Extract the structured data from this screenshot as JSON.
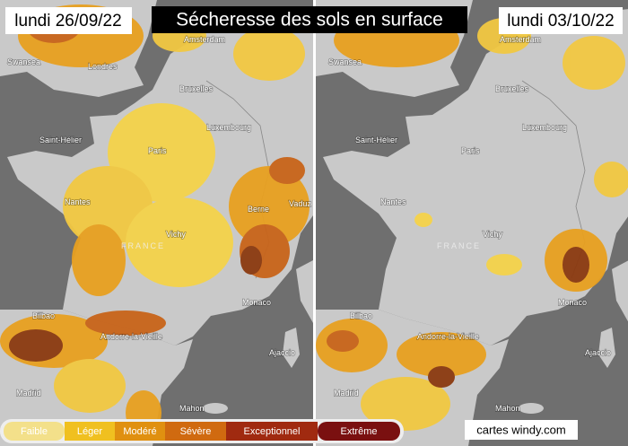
{
  "title": "Sécheresse des sols en surface",
  "panels": [
    {
      "date": "lundi 26/09/22",
      "cities": [
        "Swansea",
        "Londres",
        "Amsterdam",
        "Bruxelles",
        "Luxembourg",
        "Saint-Hélier",
        "Paris",
        "Nantes",
        "Vichy",
        "Berne",
        "Vaduz",
        "FRANCE",
        "Monaco",
        "Bilbao",
        "Andorre-la-Vieille",
        "Ajaccio",
        "Madrid",
        "Mahon"
      ]
    },
    {
      "date": "lundi 03/10/22",
      "cities": [
        "Swansea",
        "Amsterdam",
        "Bruxelles",
        "Luxembourg",
        "Saint-Hélier",
        "Paris",
        "Nantes",
        "Vichy",
        "FRANCE",
        "Monaco",
        "Bilbao",
        "Andorre-la-Vieille",
        "Ajaccio",
        "Madrid",
        "Mahon"
      ]
    }
  ],
  "legend": [
    "Faible",
    "Léger",
    "Modéré",
    "Sévère",
    "Exceptionnel",
    "Extrême"
  ],
  "credit": "cartes windy.com"
}
